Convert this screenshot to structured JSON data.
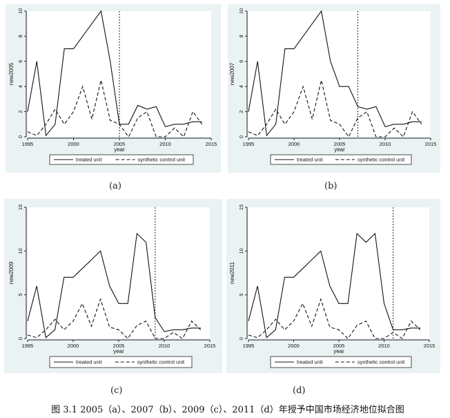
{
  "chart_data": [
    {
      "id": "a",
      "type": "line",
      "ylabel": "new2005",
      "xlabel": "year",
      "xlim": [
        1995,
        2015
      ],
      "ylim": [
        0,
        10
      ],
      "xticks": [
        "1995",
        "2000",
        "2005",
        "2010",
        "2015"
      ],
      "yticks": [
        "0",
        "2",
        "4",
        "6",
        "8",
        "10"
      ],
      "x": [
        1995,
        1996,
        1997,
        1998,
        1999,
        2000,
        2001,
        2002,
        2003,
        2004,
        2005,
        2006,
        2007,
        2008,
        2009,
        2010,
        2011,
        2012,
        2013,
        2014
      ],
      "series": [
        {
          "name": "treated unit",
          "style": "solid",
          "values": [
            2,
            6,
            0.1,
            1,
            7,
            7,
            8,
            9,
            10,
            6,
            1,
            1,
            2.5,
            2.2,
            2.4,
            0.8,
            1,
            1,
            1.2,
            1.2
          ]
        },
        {
          "name": "synthetic control unit",
          "style": "dashed",
          "values": [
            0.4,
            0.1,
            1,
            2.2,
            1,
            2,
            4,
            1.4,
            4.5,
            1.3,
            1,
            0,
            1.5,
            2,
            0,
            0,
            0.7,
            0,
            2,
            1
          ]
        }
      ],
      "vline": 2005,
      "legend_position": "bottom"
    },
    {
      "id": "b",
      "type": "line",
      "ylabel": "new2007",
      "xlabel": "year",
      "xlim": [
        1995,
        2015
      ],
      "ylim": [
        0,
        10
      ],
      "xticks": [
        "1995",
        "2000",
        "2005",
        "2010",
        "2015"
      ],
      "yticks": [
        "0",
        "2",
        "4",
        "6",
        "8",
        "10"
      ],
      "x": [
        1995,
        1996,
        1997,
        1998,
        1999,
        2000,
        2001,
        2002,
        2003,
        2004,
        2005,
        2006,
        2007,
        2008,
        2009,
        2010,
        2011,
        2012,
        2013,
        2014
      ],
      "series": [
        {
          "name": "treated unit",
          "style": "solid",
          "values": [
            2,
            6,
            0.1,
            1,
            7,
            7,
            8,
            9,
            10,
            6,
            4,
            4,
            2.4,
            2.2,
            2.4,
            0.8,
            1,
            1,
            1.2,
            1.2
          ]
        },
        {
          "name": "synthetic control unit",
          "style": "dashed",
          "values": [
            0.4,
            0.1,
            1,
            2.2,
            1,
            2,
            4,
            1.4,
            4.5,
            1.3,
            1,
            0,
            1.5,
            2,
            0,
            0,
            0.7,
            0,
            2,
            1
          ]
        }
      ],
      "vline": 2007,
      "legend_position": "bottom"
    },
    {
      "id": "c",
      "type": "line",
      "ylabel": "new2009",
      "xlabel": "year",
      "xlim": [
        1995,
        2015
      ],
      "ylim": [
        0,
        15
      ],
      "xticks": [
        "1995",
        "2000",
        "2005",
        "2010",
        "2015"
      ],
      "yticks": [
        "0",
        "5",
        "10",
        "15"
      ],
      "x": [
        1995,
        1996,
        1997,
        1998,
        1999,
        2000,
        2001,
        2002,
        2003,
        2004,
        2005,
        2006,
        2007,
        2008,
        2009,
        2010,
        2011,
        2012,
        2013,
        2014
      ],
      "series": [
        {
          "name": "treated unit",
          "style": "solid",
          "values": [
            2,
            6,
            0.1,
            1,
            7,
            7,
            8,
            9,
            10,
            6,
            4,
            4,
            12,
            11,
            2.4,
            0.8,
            1,
            1,
            1.2,
            1.2
          ]
        },
        {
          "name": "synthetic control unit",
          "style": "dashed",
          "values": [
            0.4,
            0.1,
            1,
            2.2,
            1,
            2,
            4,
            1.4,
            4.5,
            1.3,
            1,
            0,
            1.5,
            2,
            0,
            0,
            0.7,
            0,
            2,
            1
          ]
        }
      ],
      "vline": 2009,
      "legend_position": "bottom"
    },
    {
      "id": "d",
      "type": "line",
      "ylabel": "new2011",
      "xlabel": "year",
      "xlim": [
        1995,
        2015
      ],
      "ylim": [
        0,
        15
      ],
      "xticks": [
        "1995",
        "2000",
        "2005",
        "2010",
        "2015"
      ],
      "yticks": [
        "0",
        "5",
        "10",
        "15"
      ],
      "x": [
        1995,
        1996,
        1997,
        1998,
        1999,
        2000,
        2001,
        2002,
        2003,
        2004,
        2005,
        2006,
        2007,
        2008,
        2009,
        2010,
        2011,
        2012,
        2013,
        2014
      ],
      "series": [
        {
          "name": "treated unit",
          "style": "solid",
          "values": [
            2,
            6,
            0.1,
            1,
            7,
            7,
            8,
            9,
            10,
            6,
            4,
            4,
            12,
            11,
            12,
            4,
            1,
            1,
            1.2,
            1.2
          ]
        },
        {
          "name": "synthetic control unit",
          "style": "dashed",
          "values": [
            0.4,
            0.1,
            1,
            2.2,
            1,
            2,
            4,
            1.4,
            4.5,
            1.3,
            1,
            0,
            1.5,
            2,
            0,
            0,
            0.7,
            0,
            2,
            1
          ]
        }
      ],
      "vline": 2011,
      "legend_position": "bottom"
    }
  ],
  "subcaptions": [
    "(a)",
    "(b)",
    "(c)",
    "(d)"
  ],
  "caption": "图 3.1 2005（a）、2007（b）、2009（c）、2011（d）年授予中国市场经济地位拟合图"
}
